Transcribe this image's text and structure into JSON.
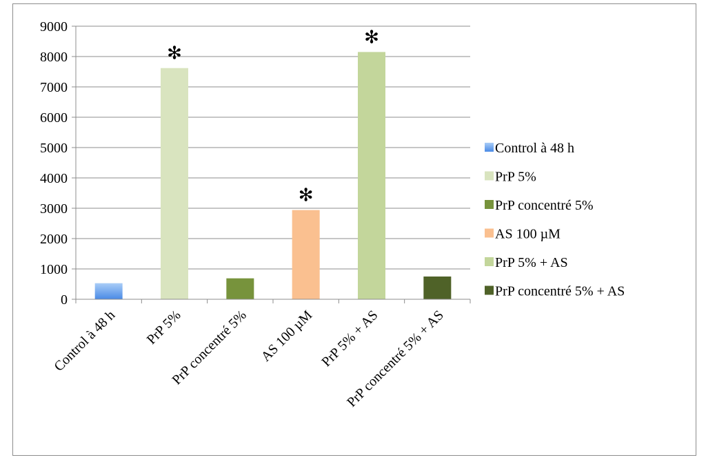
{
  "chart_data": {
    "type": "bar",
    "title": "",
    "xlabel": "",
    "ylabel": "",
    "ylim": [
      0,
      9000
    ],
    "yticks": [
      0,
      1000,
      2000,
      3000,
      4000,
      5000,
      6000,
      7000,
      8000,
      9000
    ],
    "grid": "horizontal",
    "legend_position": "right",
    "categories": [
      "Control   à 48 h",
      "PrP 5%",
      "PrP concentré 5%",
      "AS 100 µM",
      "PrP 5% + AS",
      "PrP concentré 5% + AS"
    ],
    "values": [
      530,
      7620,
      690,
      2940,
      8150,
      750
    ],
    "colors": [
      "#7aaef0",
      "#d9e4bf",
      "#77933c",
      "#fac090",
      "#c3d69b",
      "#4f6228"
    ],
    "significance_markers": [
      "",
      "✻",
      "",
      "✻",
      "✻",
      ""
    ],
    "legend": [
      "Control   à 48 h",
      "PrP 5%",
      "PrP concentré 5%",
      "AS 100 µM",
      "PrP 5% + AS",
      "PrP concentré 5% + AS"
    ]
  }
}
